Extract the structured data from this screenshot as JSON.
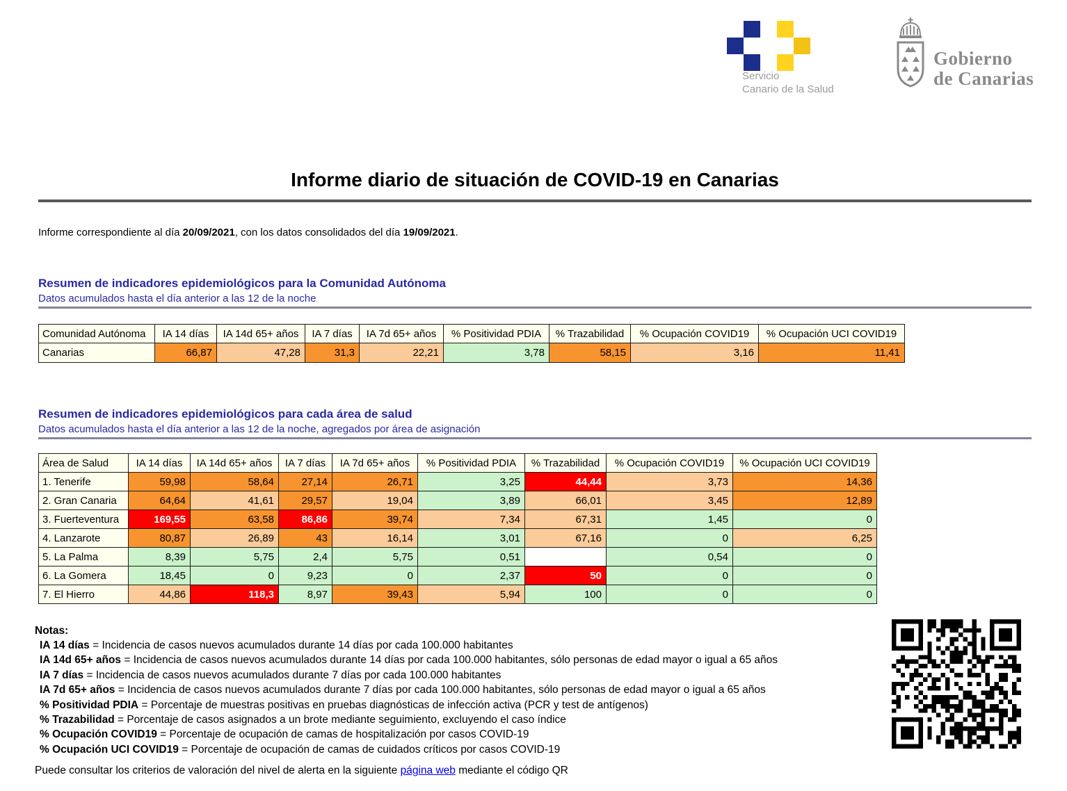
{
  "palette": {
    "orange": "#F7942F",
    "peach": "#FBCB99",
    "green": "#CBF2CB",
    "red": "#FF0000",
    "white": "#FFFFFF",
    "header_bg": "#FFFFEE",
    "heading_blue": "#2929A3",
    "link_blue": "#0000EE"
  },
  "logos": {
    "scs_line1": "Servicio",
    "scs_line2": "Canario de la Salud",
    "gob_line1": "Gobierno",
    "gob_line2": "de Canarias"
  },
  "header": {
    "title": "Informe diario de situación de COVID-19 en Canarias",
    "intro_prefix": "Informe correspondiente al día ",
    "intro_date1": "20/09/2021",
    "intro_middle": ", con los datos consolidados del día ",
    "intro_date2": "19/09/2021",
    "intro_suffix": "."
  },
  "section1": {
    "title": "Resumen de indicadores epidemiológicos para la Comunidad Autónoma",
    "subtitle": "Datos acumulados hasta el día anterior a las 12 de la noche",
    "table": {
      "columns": [
        "Comunidad Autónoma",
        "IA 14 días",
        "IA 14d 65+ años",
        "IA 7 días",
        "IA 7d 65+ años",
        "% Positividad PDIA",
        "% Trazabilidad",
        "% Ocupación COVID19",
        "% Ocupación UCI COVID19"
      ],
      "rows": [
        {
          "label": "Canarias",
          "cells": [
            {
              "v": "66,87",
              "c": "orange"
            },
            {
              "v": "47,28",
              "c": "peach"
            },
            {
              "v": "31,3",
              "c": "orange"
            },
            {
              "v": "22,21",
              "c": "peach"
            },
            {
              "v": "3,78",
              "c": "green"
            },
            {
              "v": "58,15",
              "c": "orange"
            },
            {
              "v": "3,16",
              "c": "peach"
            },
            {
              "v": "11,41",
              "c": "orange"
            }
          ]
        }
      ]
    }
  },
  "section2": {
    "title": "Resumen de indicadores epidemiológicos para cada área de salud",
    "subtitle": "Datos acumulados hasta el día anterior a las 12 de la noche, agregados por área de asignación",
    "table": {
      "columns": [
        "Área de Salud",
        "IA 14 días",
        "IA 14d 65+ años",
        "IA 7 días",
        "IA 7d 65+ años",
        "% Positividad PDIA",
        "% Trazabilidad",
        "% Ocupación COVID19",
        "% Ocupación UCI COVID19"
      ],
      "rows": [
        {
          "label": "1. Tenerife",
          "cells": [
            {
              "v": "59,98",
              "c": "orange"
            },
            {
              "v": "58,64",
              "c": "orange"
            },
            {
              "v": "27,14",
              "c": "orange"
            },
            {
              "v": "26,71",
              "c": "orange"
            },
            {
              "v": "3,25",
              "c": "green"
            },
            {
              "v": "44,44",
              "c": "red"
            },
            {
              "v": "3,73",
              "c": "peach"
            },
            {
              "v": "14,36",
              "c": "orange"
            }
          ]
        },
        {
          "label": "2. Gran Canaria",
          "cells": [
            {
              "v": "64,64",
              "c": "orange"
            },
            {
              "v": "41,61",
              "c": "peach"
            },
            {
              "v": "29,57",
              "c": "orange"
            },
            {
              "v": "19,04",
              "c": "peach"
            },
            {
              "v": "3,89",
              "c": "green"
            },
            {
              "v": "66,01",
              "c": "peach"
            },
            {
              "v": "3,45",
              "c": "peach"
            },
            {
              "v": "12,89",
              "c": "orange"
            }
          ]
        },
        {
          "label": "3. Fuerteventura",
          "cells": [
            {
              "v": "169,55",
              "c": "red"
            },
            {
              "v": "63,58",
              "c": "orange"
            },
            {
              "v": "86,86",
              "c": "red"
            },
            {
              "v": "39,74",
              "c": "orange"
            },
            {
              "v": "7,34",
              "c": "peach"
            },
            {
              "v": "67,31",
              "c": "peach"
            },
            {
              "v": "1,45",
              "c": "green"
            },
            {
              "v": "0",
              "c": "green"
            }
          ]
        },
        {
          "label": "4. Lanzarote",
          "cells": [
            {
              "v": "80,87",
              "c": "orange"
            },
            {
              "v": "26,89",
              "c": "peach"
            },
            {
              "v": "43",
              "c": "orange"
            },
            {
              "v": "16,14",
              "c": "peach"
            },
            {
              "v": "3,01",
              "c": "green"
            },
            {
              "v": "67,16",
              "c": "peach"
            },
            {
              "v": "0",
              "c": "green"
            },
            {
              "v": "6,25",
              "c": "peach"
            }
          ]
        },
        {
          "label": "5. La Palma",
          "cells": [
            {
              "v": "8,39",
              "c": "green"
            },
            {
              "v": "5,75",
              "c": "green"
            },
            {
              "v": "2,4",
              "c": "green"
            },
            {
              "v": "5,75",
              "c": "green"
            },
            {
              "v": "0,51",
              "c": "green"
            },
            {
              "v": "",
              "c": "white"
            },
            {
              "v": "0,54",
              "c": "green"
            },
            {
              "v": "0",
              "c": "green"
            }
          ]
        },
        {
          "label": "6. La Gomera",
          "cells": [
            {
              "v": "18,45",
              "c": "green"
            },
            {
              "v": "0",
              "c": "green"
            },
            {
              "v": "9,23",
              "c": "green"
            },
            {
              "v": "0",
              "c": "green"
            },
            {
              "v": "2,37",
              "c": "green"
            },
            {
              "v": "50",
              "c": "red"
            },
            {
              "v": "0",
              "c": "green"
            },
            {
              "v": "0",
              "c": "green"
            }
          ]
        },
        {
          "label": "7. El Hierro",
          "cells": [
            {
              "v": "44,86",
              "c": "peach"
            },
            {
              "v": "118,3",
              "c": "red"
            },
            {
              "v": "8,97",
              "c": "green"
            },
            {
              "v": "39,43",
              "c": "orange"
            },
            {
              "v": "5,94",
              "c": "peach"
            },
            {
              "v": "100",
              "c": "green"
            },
            {
              "v": "0",
              "c": "green"
            },
            {
              "v": "0",
              "c": "green"
            }
          ]
        }
      ]
    }
  },
  "notes": {
    "title": "Notas:",
    "items": [
      {
        "term": "IA 14 días",
        "text": " = Incidencia de casos nuevos acumulados durante 14 días por cada 100.000 habitantes"
      },
      {
        "term": "IA 14d 65+ años",
        "text": " = Incidencia de casos nuevos acumulados durante 14 días por cada 100.000 habitantes, sólo personas de edad mayor o igual a 65 años"
      },
      {
        "term": "IA 7 días",
        "text": " = Incidencia de casos nuevos acumulados durante 7 días por cada 100.000 habitantes"
      },
      {
        "term": "IA 7d 65+ años",
        "text": " = Incidencia de casos nuevos acumulados durante 7 días por cada 100.000 habitantes, sólo personas de edad mayor o igual a 65 años"
      },
      {
        "term": "% Positividad PDIA",
        "text": " = Porcentaje de muestras positivas en pruebas diagnósticas de infección activa (PCR y test de antígenos)"
      },
      {
        "term": "% Trazabilidad",
        "text": " = Porcentaje de casos asignados a un brote mediante seguimiento, excluyendo el caso índice"
      },
      {
        "term": "% Ocupación COVID19",
        "text": " = Porcentaje de ocupación de camas de hospitalización por casos COVID-19"
      },
      {
        "term": "% Ocupación UCI COVID19",
        "text": " = Porcentaje de ocupación de camas de cuidados críticos por casos COVID-19"
      }
    ]
  },
  "footer": {
    "prefix": "Puede consultar los criterios de valoración del nivel de alerta en la siguiente ",
    "link": "página web",
    "suffix": " mediante el código QR"
  }
}
